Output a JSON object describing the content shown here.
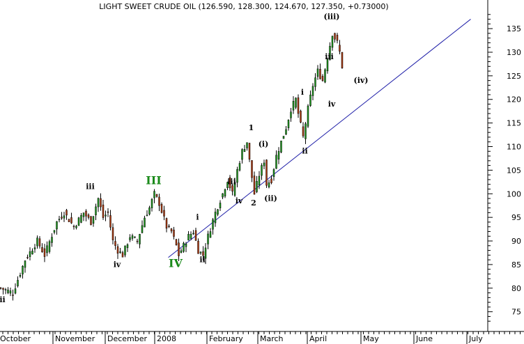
{
  "chart_data": {
    "type": "candlestick",
    "title": "LIGHT SWEET CRUDE OIL (126.590, 128.300, 124.670, 127.350, +0.73000)",
    "y_axis": {
      "side": "right",
      "ylim": [
        72,
        139
      ],
      "ticks": [
        75,
        80,
        85,
        90,
        95,
        100,
        105,
        110,
        115,
        120,
        125,
        130,
        135
      ]
    },
    "x_axis": {
      "labels": [
        "October",
        "November",
        "December",
        "2008",
        "February",
        "March",
        "April",
        "May",
        "June",
        "July"
      ]
    },
    "price_path": [
      [
        0,
        80
      ],
      [
        5,
        79
      ],
      [
        10,
        86
      ],
      [
        15,
        90
      ],
      [
        18,
        87
      ],
      [
        23,
        94
      ],
      [
        26,
        96
      ],
      [
        30,
        93
      ],
      [
        34,
        96
      ],
      [
        37,
        94
      ],
      [
        40,
        99
      ],
      [
        42,
        95
      ],
      [
        44,
        96
      ],
      [
        46,
        90
      ],
      [
        48,
        88
      ],
      [
        50,
        87
      ],
      [
        53,
        91
      ],
      [
        56,
        90
      ],
      [
        59,
        95
      ],
      [
        61,
        97
      ],
      [
        63,
        100
      ],
      [
        65,
        98
      ],
      [
        68,
        93
      ],
      [
        70,
        92
      ],
      [
        72,
        89
      ],
      [
        73,
        87
      ],
      [
        75,
        89
      ],
      [
        77,
        91
      ],
      [
        79,
        92
      ],
      [
        81,
        88
      ],
      [
        83,
        87
      ],
      [
        85,
        91
      ],
      [
        88,
        96
      ],
      [
        91,
        100
      ],
      [
        93,
        103
      ],
      [
        95,
        100
      ],
      [
        97,
        105
      ],
      [
        99,
        109
      ],
      [
        101,
        111
      ],
      [
        102,
        107
      ],
      [
        104,
        100
      ],
      [
        106,
        104
      ],
      [
        108,
        107
      ],
      [
        109,
        102
      ],
      [
        111,
        103
      ],
      [
        113,
        108
      ],
      [
        115,
        111
      ],
      [
        117,
        114
      ],
      [
        119,
        118
      ],
      [
        121,
        120
      ],
      [
        122,
        117
      ],
      [
        124,
        112
      ],
      [
        126,
        118
      ],
      [
        128,
        123
      ],
      [
        130,
        126
      ],
      [
        132,
        124
      ],
      [
        134,
        129
      ],
      [
        136,
        134
      ],
      [
        138,
        132
      ],
      [
        139,
        130
      ],
      [
        140,
        127
      ]
    ],
    "trendline": {
      "from": [
        69,
        86.5
      ],
      "to": [
        193,
        137
      ]
    },
    "wave_labels": [
      {
        "text": "ii",
        "x": 1,
        "y": 77,
        "size": "small"
      },
      {
        "text": "iii",
        "x": 37,
        "y": 101,
        "size": "small"
      },
      {
        "text": "iv",
        "x": 48,
        "y": 84.5,
        "size": "small"
      },
      {
        "text": "III",
        "x": 63,
        "y": 102,
        "size": "big"
      },
      {
        "text": "IV",
        "x": 72,
        "y": 84.5,
        "size": "big"
      },
      {
        "text": "i",
        "x": 81,
        "y": 94.5,
        "size": "small"
      },
      {
        "text": "ii",
        "x": 83,
        "y": 85.5,
        "size": "small"
      },
      {
        "text": "iii",
        "x": 95,
        "y": 102,
        "size": "small"
      },
      {
        "text": "iv",
        "x": 98,
        "y": 98,
        "size": "small"
      },
      {
        "text": "1",
        "x": 103,
        "y": 113.5,
        "size": "small"
      },
      {
        "text": "2",
        "x": 104,
        "y": 97.5,
        "size": "small"
      },
      {
        "text": "(i)",
        "x": 108,
        "y": 110,
        "size": "small"
      },
      {
        "text": "(ii)",
        "x": 111,
        "y": 98.5,
        "size": "small"
      },
      {
        "text": "i",
        "x": 124,
        "y": 121,
        "size": "small"
      },
      {
        "text": "ii",
        "x": 125,
        "y": 108.5,
        "size": "small"
      },
      {
        "text": "iii",
        "x": 135,
        "y": 128.5,
        "size": "small"
      },
      {
        "text": "iv",
        "x": 136,
        "y": 118.5,
        "size": "small"
      },
      {
        "text": "(iii)",
        "x": 136,
        "y": 137,
        "size": "small"
      },
      {
        "text": "(iv)",
        "x": 148,
        "y": 123.5,
        "size": "small"
      }
    ]
  }
}
